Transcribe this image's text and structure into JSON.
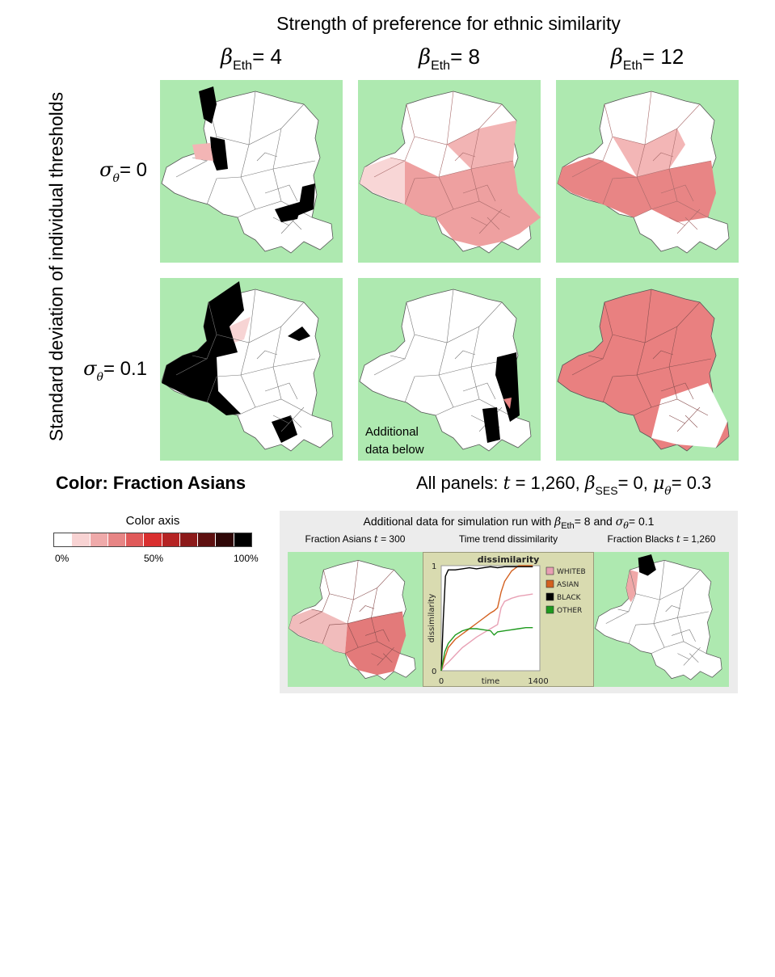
{
  "title": "Strength of preference for ethnic similarity",
  "columns": [
    {
      "symbol": "β",
      "sub": "Eth",
      "value": "= 4"
    },
    {
      "symbol": "β",
      "sub": "Eth",
      "value": "= 8"
    },
    {
      "symbol": "β",
      "sub": "Eth",
      "value": "= 12"
    }
  ],
  "y_axis_label": "Standard deviation of individual thresholds",
  "rows": [
    {
      "symbol": "σ",
      "sub": "θ",
      "value": "= 0"
    },
    {
      "symbol": "σ",
      "sub": "θ",
      "value": "= 0.1"
    }
  ],
  "panel_note_line1": "Additional",
  "panel_note_line2": "data below",
  "color_title": "Color: Fraction Asians",
  "all_panels": {
    "prefix": "All panels: ",
    "t": "t",
    "t_value": " = 1,260, ",
    "beta": "β",
    "beta_sub": "SES",
    "beta_value": "= 0, ",
    "mu": "μ",
    "mu_sub": "θ",
    "mu_value": "= 0.3"
  },
  "color_axis": {
    "title": "Color axis",
    "tick_0": "0%",
    "tick_50": "50%",
    "tick_100": "100%",
    "colors": [
      "#ffffff",
      "#f8d3d3",
      "#efaaaa",
      "#e78585",
      "#e05a5a",
      "#d92f2f",
      "#b52424",
      "#8c1a1a",
      "#5e1010",
      "#2e0707",
      "#000000"
    ]
  },
  "extra": {
    "title_prefix": "Additional data for simulation run with ",
    "beta": "β",
    "beta_sub": "Eth",
    "beta_value": "= 8 and ",
    "sigma": "σ",
    "sigma_sub": "θ",
    "sigma_value": "= 0.1",
    "label_left_prefix": "Fraction Asians ",
    "label_left_t": "t",
    "label_left_value": " = 300",
    "label_middle": "Time trend dissimilarity",
    "label_right_prefix": "Fraction Blacks ",
    "label_right_t": "t",
    "label_right_value": " = 1,260"
  },
  "chart_data": {
    "type": "line",
    "title": "dissimilarity",
    "ylabel": "dissimilarity",
    "xlabel": "time",
    "x_ticks": [
      "0",
      "1400"
    ],
    "y_ticks": [
      "0",
      "1"
    ],
    "xlim": [
      0,
      1400
    ],
    "ylim": [
      0,
      1
    ],
    "legend": "right",
    "series": [
      {
        "name": "WHITEB",
        "color": "#e8a0b4",
        "x": [
          0,
          50,
          100,
          200,
          300,
          400,
          500,
          600,
          700,
          750,
          800,
          850,
          900,
          1000,
          1100,
          1200,
          1300
        ],
        "y": [
          0.0,
          0.05,
          0.08,
          0.15,
          0.22,
          0.27,
          0.32,
          0.36,
          0.4,
          0.42,
          0.44,
          0.6,
          0.66,
          0.69,
          0.71,
          0.72,
          0.73
        ]
      },
      {
        "name": "ASIAN",
        "color": "#d3601f",
        "x": [
          0,
          50,
          100,
          200,
          300,
          400,
          500,
          600,
          700,
          750,
          800,
          850,
          900,
          1000,
          1100,
          1200,
          1300
        ],
        "y": [
          0.0,
          0.12,
          0.22,
          0.3,
          0.35,
          0.4,
          0.45,
          0.5,
          0.55,
          0.57,
          0.6,
          0.75,
          0.85,
          0.95,
          1.0,
          1.0,
          1.0
        ]
      },
      {
        "name": "BLACK",
        "color": "#000000",
        "x": [
          0,
          30,
          60,
          100,
          200,
          300,
          400,
          500,
          600,
          700,
          800,
          900,
          1000,
          1100,
          1200,
          1300
        ],
        "y": [
          0.0,
          0.5,
          0.9,
          0.96,
          0.96,
          0.97,
          0.98,
          0.97,
          0.98,
          0.99,
          0.98,
          0.99,
          0.99,
          0.99,
          0.99,
          0.99
        ]
      },
      {
        "name": "OTHER",
        "color": "#1e9a1e",
        "x": [
          0,
          50,
          100,
          200,
          300,
          400,
          500,
          600,
          700,
          750,
          800,
          900,
          1000,
          1100,
          1200,
          1300
        ],
        "y": [
          0.0,
          0.18,
          0.26,
          0.34,
          0.38,
          0.4,
          0.4,
          0.39,
          0.38,
          0.34,
          0.37,
          0.38,
          0.39,
          0.4,
          0.41,
          0.41
        ]
      }
    ]
  }
}
